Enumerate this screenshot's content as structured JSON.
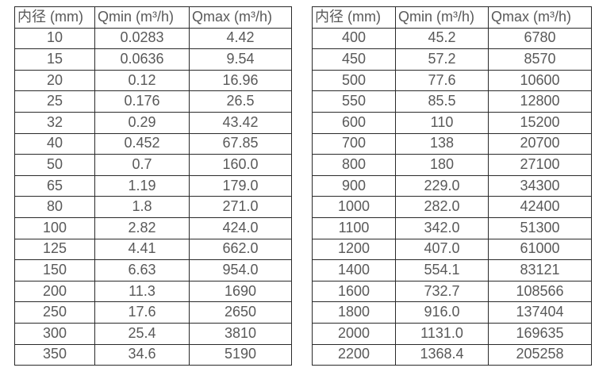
{
  "page": {
    "background_color": "#ffffff",
    "border_color": "#2a2a2a",
    "text_color": "#595959"
  },
  "tables": [
    {
      "name": "flow-spec-table-small-diameters",
      "headers": [
        "内径 (mm)",
        "Qmin (m³/h)",
        "Qmax (m³/h)"
      ],
      "rows": [
        [
          "10",
          "0.0283",
          "4.42"
        ],
        [
          "15",
          "0.0636",
          "9.54"
        ],
        [
          "20",
          "0.12",
          "16.96"
        ],
        [
          "25",
          "0.176",
          "26.5"
        ],
        [
          "32",
          "0.29",
          "43.42"
        ],
        [
          "40",
          "0.452",
          "67.85"
        ],
        [
          "50",
          "0.7",
          "160.0"
        ],
        [
          "65",
          "1.19",
          "179.0"
        ],
        [
          "80",
          "1.8",
          "271.0"
        ],
        [
          "100",
          "2.82",
          "424.0"
        ],
        [
          "125",
          "4.41",
          "662.0"
        ],
        [
          "150",
          "6.63",
          "954.0"
        ],
        [
          "200",
          "11.3",
          "1690"
        ],
        [
          "250",
          "17.6",
          "2650"
        ],
        [
          "300",
          "25.4",
          "3810"
        ],
        [
          "350",
          "34.6",
          "5190"
        ]
      ]
    },
    {
      "name": "flow-spec-table-large-diameters",
      "headers": [
        "内径 (mm)",
        "Qmin (m³/h)",
        "Qmax (m³/h)"
      ],
      "rows": [
        [
          "400",
          "45.2",
          "6780"
        ],
        [
          "450",
          "57.2",
          "8570"
        ],
        [
          "500",
          "77.6",
          "10600"
        ],
        [
          "550",
          "85.5",
          "12800"
        ],
        [
          "600",
          "110",
          "15200"
        ],
        [
          "700",
          "138",
          "20700"
        ],
        [
          "800",
          "180",
          "27100"
        ],
        [
          "900",
          "229.0",
          "34300"
        ],
        [
          "1000",
          "282.0",
          "42400"
        ],
        [
          "1100",
          "342.0",
          "51300"
        ],
        [
          "1200",
          "407.0",
          "61000"
        ],
        [
          "1400",
          "554.1",
          "83121"
        ],
        [
          "1600",
          "732.7",
          "108566"
        ],
        [
          "1800",
          "916.0",
          "137404"
        ],
        [
          "2000",
          "1131.0",
          "169635"
        ],
        [
          "2200",
          "1368.4",
          "205258"
        ]
      ]
    }
  ]
}
